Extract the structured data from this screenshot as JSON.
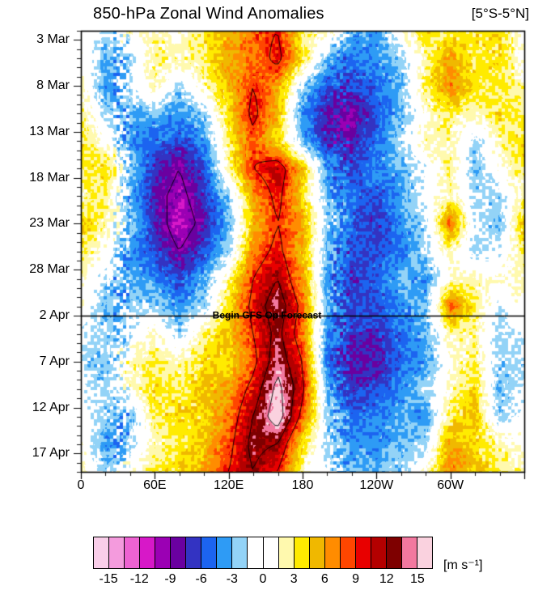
{
  "chart": {
    "title": "850-hPa Zonal Wind Anomalies",
    "region_label": "[5°S-5°N]",
    "annotation": "Begin GFS Op Forecast",
    "units_label": "[m s⁻¹]"
  },
  "chart_data": {
    "type": "heatmap",
    "title": "850-hPa Zonal Wind Anomalies",
    "region": "5°S-5°N",
    "units": "m s⁻¹",
    "x_axis": {
      "label": "longitude",
      "tick_labels": [
        "0",
        "60E",
        "120E",
        "180",
        "120W",
        "60W"
      ],
      "tick_lons": [
        0,
        60,
        120,
        180,
        240,
        300
      ],
      "range": [
        0,
        360
      ]
    },
    "y_axis": {
      "label": "date",
      "tick_labels": [
        "3 Mar",
        "8 Mar",
        "13 Mar",
        "18 Mar",
        "23 Mar",
        "28 Mar",
        "2 Apr",
        "7 Apr",
        "12 Apr",
        "17 Apr"
      ],
      "tick_days": [
        1,
        6,
        11,
        16,
        21,
        26,
        31,
        36,
        41,
        46
      ],
      "range_days": [
        0,
        48
      ],
      "start_date": "2 Mar",
      "end_date": "19 Apr"
    },
    "forecast_line": {
      "label": "Begin GFS Op Forecast",
      "day": 31,
      "date": "2 Apr"
    },
    "levels": {
      "min": -16.5,
      "max": 16.5,
      "step": 1.5
    },
    "contour_levels": [
      -9,
      9,
      12,
      15
    ],
    "grid": {
      "lon": [
        0,
        20,
        40,
        60,
        80,
        100,
        120,
        140,
        160,
        180,
        200,
        220,
        240,
        260,
        280,
        300,
        320,
        340,
        360
      ],
      "day": [
        0,
        3,
        6,
        9,
        12,
        15,
        18,
        21,
        24,
        27,
        30,
        33,
        36,
        39,
        42,
        45,
        48
      ],
      "values": [
        [
          0,
          -2,
          1,
          2,
          1,
          4,
          5,
          8,
          9,
          3,
          2,
          -3,
          -4,
          1,
          4,
          3,
          4,
          4,
          0
        ],
        [
          1,
          -3,
          -2,
          3,
          2,
          3,
          6,
          7,
          10,
          4,
          -3,
          -5,
          -4,
          -2,
          2,
          6,
          3,
          4,
          1
        ],
        [
          2,
          -4,
          -1,
          2,
          -2,
          2,
          5,
          9,
          6,
          -2,
          -6,
          -6,
          -5,
          -3,
          3,
          7,
          4,
          3,
          2
        ],
        [
          3,
          -2,
          -3,
          -3,
          -4,
          -2,
          4,
          10,
          5,
          -4,
          -8,
          -9,
          -6,
          -3,
          1,
          3,
          2,
          4,
          3
        ],
        [
          4,
          1,
          -4,
          -5,
          -6,
          -4,
          3,
          8,
          4,
          -3,
          -7,
          -8,
          -5,
          -2,
          2,
          2,
          -2,
          2,
          4
        ],
        [
          3,
          4,
          -2,
          -7,
          -9,
          -6,
          2,
          9,
          11,
          5,
          -4,
          -6,
          -4,
          -3,
          -1,
          3,
          -3,
          1,
          3
        ],
        [
          2,
          3,
          -3,
          -8,
          -10,
          -7,
          -2,
          6,
          10,
          4,
          -3,
          -5,
          -6,
          -4,
          0,
          2,
          -2,
          -2,
          2
        ],
        [
          5,
          2,
          -2,
          -7,
          -11,
          -8,
          -3,
          5,
          9,
          6,
          -2,
          -5,
          -7,
          -4,
          -2,
          8,
          -1,
          -3,
          5
        ],
        [
          3,
          1,
          -4,
          -6,
          -9,
          -6,
          -2,
          7,
          10,
          5,
          -3,
          -6,
          -6,
          -5,
          -2,
          2,
          -2,
          -1,
          3
        ],
        [
          2,
          -2,
          -3,
          -4,
          -6,
          -3,
          2,
          9,
          12,
          6,
          -4,
          -7,
          -5,
          -3,
          -4,
          1,
          2,
          1,
          2
        ],
        [
          1,
          -3,
          -2,
          -2,
          -4,
          -2,
          4,
          10,
          14,
          8,
          -3,
          -6,
          -6,
          -4,
          -3,
          8,
          3,
          -1,
          1
        ],
        [
          -1,
          -2,
          -1,
          2,
          -2,
          3,
          5,
          9,
          13,
          7,
          -4,
          -7,
          -7,
          -5,
          -3,
          2,
          2,
          -2,
          -1
        ],
        [
          -2,
          -3,
          2,
          3,
          2,
          4,
          4,
          8,
          14,
          9,
          -5,
          -8,
          -8,
          -5,
          -4,
          1,
          3,
          -2,
          -2
        ],
        [
          -1,
          -2,
          1,
          4,
          3,
          5,
          6,
          10,
          16,
          10,
          -3,
          -7,
          -6,
          -4,
          -2,
          2,
          4,
          -3,
          -1
        ],
        [
          0,
          -2,
          -3,
          3,
          4,
          4,
          7,
          12,
          17,
          8,
          -2,
          -5,
          -5,
          -3,
          -4,
          3,
          5,
          -2,
          0
        ],
        [
          1,
          -4,
          -2,
          2,
          3,
          5,
          8,
          13,
          12,
          4,
          -2,
          -4,
          -4,
          -3,
          -2,
          6,
          4,
          2,
          1
        ],
        [
          2,
          -2,
          1,
          3,
          4,
          6,
          9,
          12,
          9,
          2,
          -1,
          -3,
          -3,
          -2,
          1,
          7,
          5,
          3,
          2
        ]
      ]
    }
  },
  "colorbar": {
    "colors": [
      "#F9CEE9",
      "#F49BDD",
      "#EE63D2",
      "#D718C8",
      "#9B00B4",
      "#6A00A0",
      "#3333C2",
      "#1C64F0",
      "#2E9BF5",
      "#93D3F7",
      "#FFFFFF",
      "#FFFFFF",
      "#FFF9AE",
      "#FFEB00",
      "#F0B800",
      "#FF8C00",
      "#FF4600",
      "#E80000",
      "#B40000",
      "#7E0000",
      "#F2789F",
      "#FAD2DF"
    ],
    "tick_labels": [
      "-15",
      "-12",
      "-9",
      "-6",
      "-3",
      "0",
      "3",
      "6",
      "9",
      "12",
      "15"
    ],
    "units_label": "[m s⁻¹]"
  }
}
